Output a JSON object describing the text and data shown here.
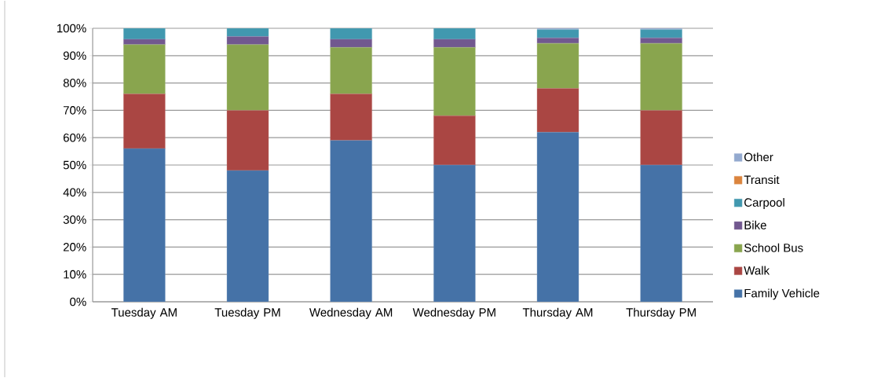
{
  "chart_data": {
    "type": "bar",
    "stacked": true,
    "categories": [
      "Tuesday AM",
      "Tuesday PM",
      "Wednesday AM",
      "Wednesday PM",
      "Thursday AM",
      "Thursday PM"
    ],
    "series": [
      {
        "name": "Family Vehicle",
        "color": "#4572a7",
        "values": [
          56,
          48,
          59,
          50,
          62,
          50
        ]
      },
      {
        "name": "Walk",
        "color": "#aa4643",
        "values": [
          20,
          22,
          17,
          18,
          16,
          20
        ]
      },
      {
        "name": "School Bus",
        "color": "#89a54e",
        "values": [
          18,
          24,
          17,
          25,
          16.5,
          24.5
        ]
      },
      {
        "name": "Bike",
        "color": "#71588f",
        "values": [
          2,
          3,
          3,
          3,
          2,
          2
        ]
      },
      {
        "name": "Carpool",
        "color": "#4198af",
        "values": [
          4,
          3,
          4,
          4,
          3,
          3
        ]
      },
      {
        "name": "Transit",
        "color": "#db843d",
        "values": [
          0,
          0,
          0,
          0,
          0,
          0
        ]
      },
      {
        "name": "Other",
        "color": "#93a9cf",
        "values": [
          0,
          0,
          0,
          0,
          0.5,
          0.5
        ]
      }
    ],
    "ylim": [
      0,
      100
    ],
    "yticks": [
      {
        "value": 0,
        "label": "0%"
      },
      {
        "value": 10,
        "label": "10%"
      },
      {
        "value": 20,
        "label": "20%"
      },
      {
        "value": 30,
        "label": "30%"
      },
      {
        "value": 40,
        "label": "40%"
      },
      {
        "value": 50,
        "label": "50%"
      },
      {
        "value": 60,
        "label": "60%"
      },
      {
        "value": 70,
        "label": "70%"
      },
      {
        "value": 80,
        "label": "80%"
      },
      {
        "value": 90,
        "label": "90%"
      },
      {
        "value": 100,
        "label": "100%"
      }
    ],
    "grid": "y",
    "legend": "right"
  }
}
